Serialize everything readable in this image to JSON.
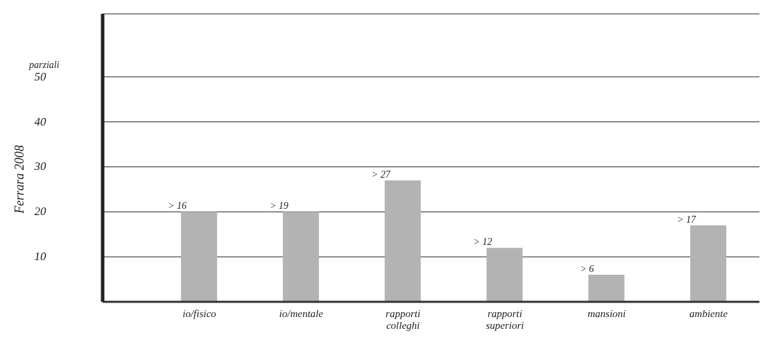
{
  "chart_data": {
    "type": "bar",
    "ylabel": "parziali",
    "categories": [
      "io/fisico",
      "io/mentale",
      "rapporti colleghi",
      "rapporti superiori",
      "mansioni",
      "ambiente"
    ],
    "values": [
      20,
      20,
      27,
      12,
      6,
      17
    ],
    "value_labels": [
      "> 16",
      "> 19",
      "> 27",
      "> 12",
      "> 6",
      "> 17"
    ],
    "color": "#b3b3b3",
    "ylim": [
      0,
      64
    ],
    "yticks": [
      10,
      20,
      30,
      40,
      50
    ],
    "grid": "y",
    "annotations": [
      "Ferrara 2008"
    ]
  }
}
